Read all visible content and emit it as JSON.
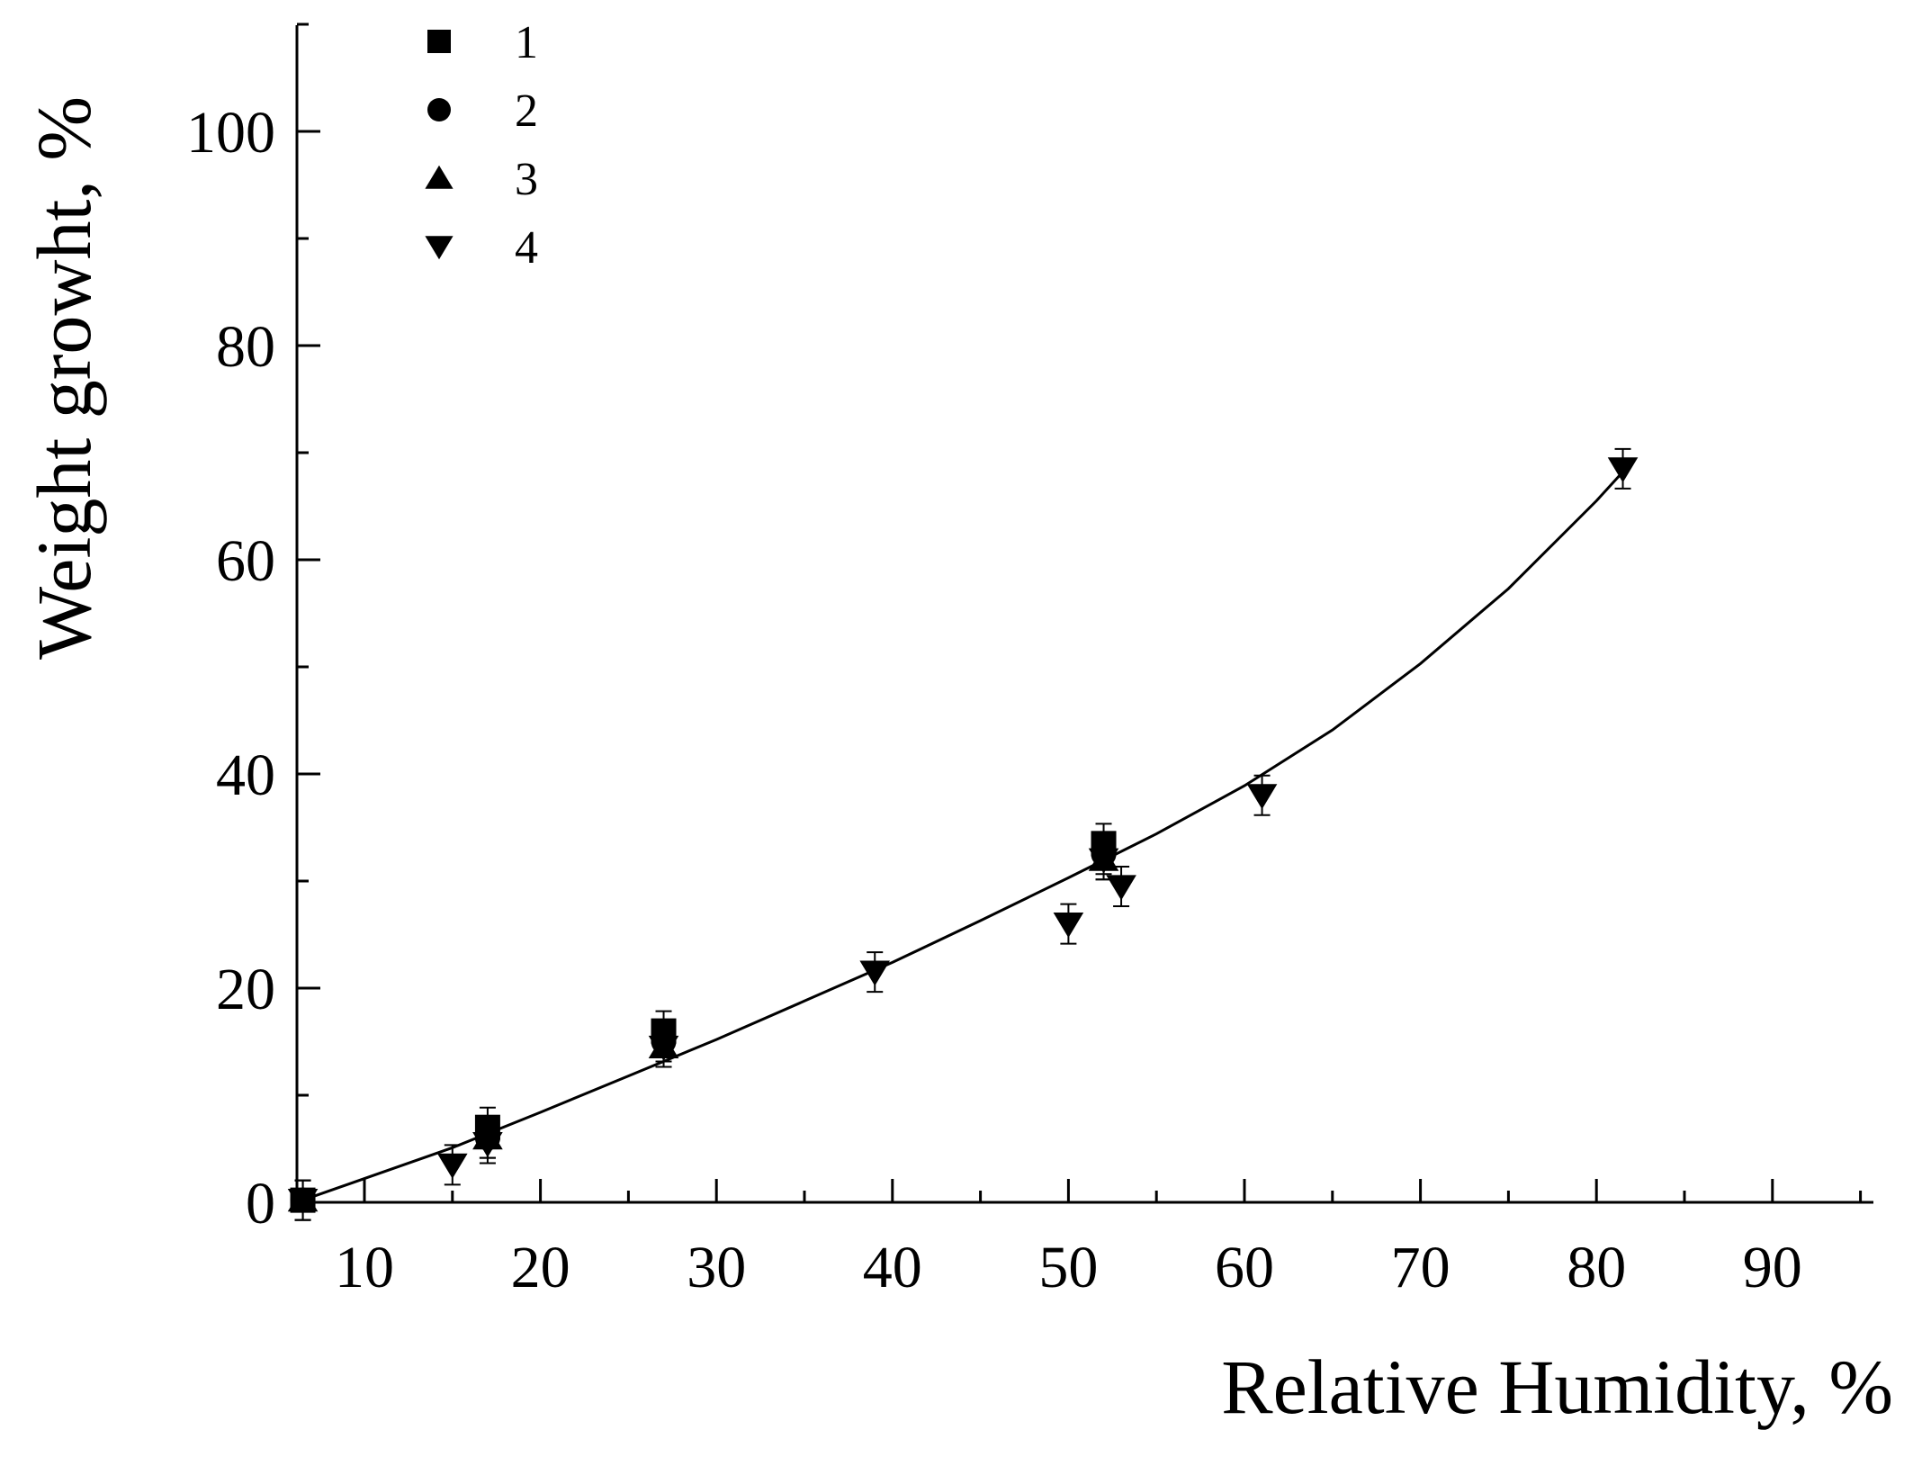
{
  "chart_data": {
    "type": "scatter",
    "xlabel": "Relative Humidity, %",
    "ylabel": "Weight growht, %",
    "xlim": [
      6,
      96
    ],
    "ylim": [
      0,
      110
    ],
    "xticks": [
      10,
      20,
      30,
      40,
      50,
      60,
      70,
      80,
      90
    ],
    "yticks": [
      0,
      20,
      40,
      60,
      80,
      100
    ],
    "grid": false,
    "legend_position": "top-left",
    "series": [
      {
        "name": "1",
        "marker": "square",
        "points": [
          [
            6.5,
            0.2
          ],
          [
            17,
            7
          ],
          [
            27,
            16
          ],
          [
            52,
            33.5
          ]
        ]
      },
      {
        "name": "2",
        "marker": "circle",
        "points": [
          [
            6.5,
            0.2
          ],
          [
            17,
            6
          ],
          [
            27,
            15
          ],
          [
            52,
            32.5
          ]
        ]
      },
      {
        "name": "3",
        "marker": "triangle-up",
        "points": [
          [
            6.5,
            0.2
          ],
          [
            17,
            6
          ],
          [
            27,
            14.5
          ],
          [
            52,
            32
          ]
        ]
      },
      {
        "name": "4",
        "marker": "triangle-down",
        "points": [
          [
            6.5,
            0.2
          ],
          [
            15,
            3.5
          ],
          [
            17,
            5.5
          ],
          [
            27,
            14.5
          ],
          [
            39,
            21.5
          ],
          [
            50,
            26
          ],
          [
            52,
            32
          ],
          [
            53,
            29.5
          ],
          [
            61,
            38
          ],
          [
            81.5,
            68.5
          ]
        ]
      }
    ],
    "fit_curve": [
      [
        6.5,
        0.2
      ],
      [
        15,
        5.1
      ],
      [
        20,
        8.4
      ],
      [
        25,
        11.8
      ],
      [
        30,
        15.2
      ],
      [
        35,
        18.8
      ],
      [
        40,
        22.4
      ],
      [
        45,
        26.3
      ],
      [
        50,
        30.3
      ],
      [
        55,
        34.4
      ],
      [
        60,
        38.9
      ],
      [
        65,
        44.1
      ],
      [
        70,
        50.3
      ],
      [
        75,
        57.3
      ],
      [
        80,
        65.5
      ],
      [
        81.5,
        68.2
      ]
    ]
  }
}
